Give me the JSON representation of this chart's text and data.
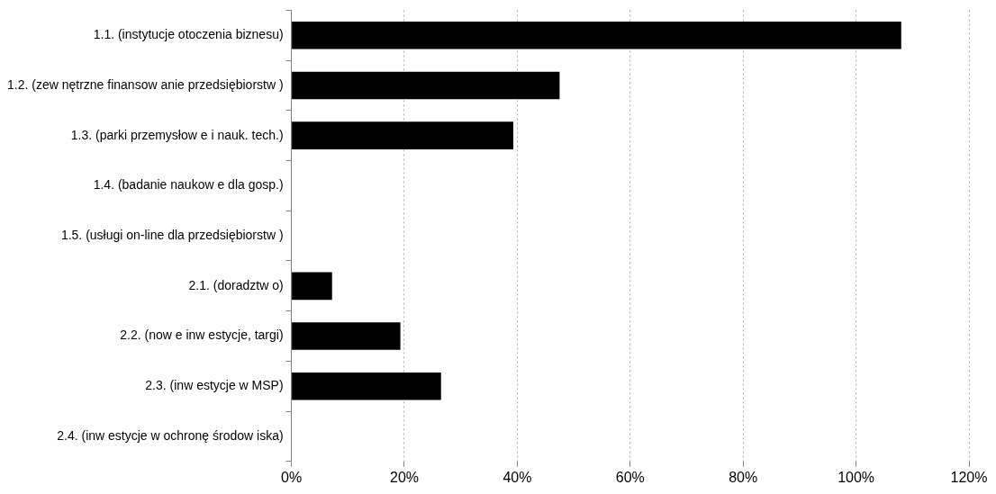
{
  "chart_data": {
    "type": "bar",
    "orientation": "horizontal",
    "categories": [
      "1.1. (instytucje otoczenia biznesu)",
      "1.2. (zew nętrzne finansow anie przedsiębiorstw )",
      "1.3. (parki przemysłow e i nauk. tech.)",
      "1.4. (badanie naukow e dla gosp.)",
      "1.5. (usługi on-line dla przedsiębiorstw )",
      "2.1. (doradztw o)",
      "2.2. (now e inw estycje, targi)",
      "2.3. (inw estycje w MSP)",
      "2.4. (inw estycje w ochronę środow iska)"
    ],
    "values": [
      1.08,
      0.475,
      0.393,
      0,
      0,
      0.072,
      0.193,
      0.265,
      0
    ],
    "color": "#000000",
    "xlim": [
      0,
      1.2
    ],
    "xticks": [
      {
        "value": 0,
        "label": "0%"
      },
      {
        "value": 0.2,
        "label": "20%"
      },
      {
        "value": 0.4,
        "label": "40%"
      },
      {
        "value": 0.6,
        "label": "60%"
      },
      {
        "value": 0.8,
        "label": "80%"
      },
      {
        "value": 1,
        "label": "100%"
      },
      {
        "value": 1.2,
        "label": "120%"
      }
    ],
    "grid": "x",
    "legend": false
  }
}
